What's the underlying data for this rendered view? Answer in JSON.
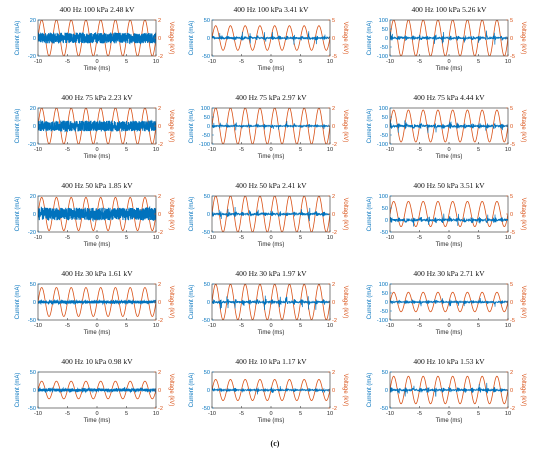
{
  "figure_caption": "(c)",
  "colors": {
    "current": "#0072BD",
    "voltage": "#D95319",
    "axes": "#262626"
  },
  "chart_data": [
    {
      "type": "line",
      "title": "400 Hz 100 kPa 2.48 kV",
      "xlabel": "Time (ms)",
      "ylabel": "Current (mA)",
      "y2label": "Voltage (kV)",
      "xlim": [
        -10,
        10
      ],
      "xticks": [
        "-10",
        "-5",
        "0",
        "5",
        "10"
      ],
      "ylim": [
        -20,
        20
      ],
      "yticks": [
        "-20",
        "0",
        "20"
      ],
      "y2lim": [
        -2,
        2
      ],
      "y2ticks": [
        "-2",
        "0",
        "2"
      ],
      "voltage_amplitude_kv": 2.48,
      "frequency_hz": 400,
      "current_peak_ma": 6,
      "current_style": "band",
      "series": [
        {
          "name": "Current (mA)"
        },
        {
          "name": "Voltage (kV)"
        }
      ]
    },
    {
      "type": "line",
      "title": "400 Hz 100 kPa 3.41 kV",
      "xlabel": "Time (ms)",
      "ylabel": "Current (mA)",
      "y2label": "Voltage (kV)",
      "xlim": [
        -10,
        10
      ],
      "xticks": [
        "-10",
        "-5",
        "0",
        "5",
        "10"
      ],
      "ylim": [
        -50,
        50
      ],
      "yticks": [
        "-50",
        "0",
        "50"
      ],
      "y2lim": [
        -5,
        5
      ],
      "y2ticks": [
        "-5",
        "0",
        "5"
      ],
      "voltage_amplitude_kv": 3.41,
      "frequency_hz": 400,
      "current_peak_ma": 18,
      "current_style": "bursts",
      "series": [
        {
          "name": "Current (mA)"
        },
        {
          "name": "Voltage (kV)"
        }
      ]
    },
    {
      "type": "line",
      "title": "400 Hz 100 kPa 5.26 kV",
      "xlabel": "Time (ms)",
      "ylabel": "Current (mA)",
      "y2label": "Voltage (kV)",
      "xlim": [
        -10,
        10
      ],
      "xticks": [
        "-10",
        "-5",
        "0",
        "5",
        "10"
      ],
      "ylim": [
        -100,
        100
      ],
      "yticks": [
        "-100",
        "-50",
        "0",
        "50",
        "100"
      ],
      "y2lim": [
        -5,
        5
      ],
      "y2ticks": [
        "-5",
        "0",
        "5"
      ],
      "voltage_amplitude_kv": 5.26,
      "frequency_hz": 400,
      "current_peak_ma": 40,
      "current_style": "bursts",
      "series": [
        {
          "name": "Current (mA)"
        },
        {
          "name": "Voltage (kV)"
        }
      ]
    },
    {
      "type": "line",
      "title": "400 Hz 75 kPa 2.23 kV",
      "xlabel": "Time (ms)",
      "ylabel": "Current (mA)",
      "y2label": "Voltage (kV)",
      "xlim": [
        -10,
        10
      ],
      "xticks": [
        "-10",
        "-5",
        "0",
        "5",
        "10"
      ],
      "ylim": [
        -20,
        20
      ],
      "yticks": [
        "-20",
        "0",
        "20"
      ],
      "y2lim": [
        -2,
        2
      ],
      "y2ticks": [
        "-2",
        "0",
        "2"
      ],
      "voltage_amplitude_kv": 2.23,
      "frequency_hz": 400,
      "current_peak_ma": 6,
      "current_style": "band",
      "series": [
        {
          "name": "Current (mA)"
        },
        {
          "name": "Voltage (kV)"
        }
      ]
    },
    {
      "type": "line",
      "title": "400 Hz 75 kPa 2.97 kV",
      "xlabel": "Time (ms)",
      "ylabel": "Current (mA)",
      "y2label": "Voltage (kV)",
      "xlim": [
        -10,
        10
      ],
      "xticks": [
        "-10",
        "-5",
        "0",
        "5",
        "10"
      ],
      "ylim": [
        -100,
        100
      ],
      "yticks": [
        "-100",
        "-50",
        "0",
        "50",
        "100"
      ],
      "y2lim": [
        -2,
        2
      ],
      "y2ticks": [
        "-2",
        "0",
        "2"
      ],
      "voltage_amplitude_kv": 2.97,
      "frequency_hz": 400,
      "current_peak_ma": 25,
      "current_style": "bursts",
      "series": [
        {
          "name": "Current (mA)"
        },
        {
          "name": "Voltage (kV)"
        }
      ]
    },
    {
      "type": "line",
      "title": "400 Hz 75 kPa 4.44 kV",
      "xlabel": "Time (ms)",
      "ylabel": "Current (mA)",
      "y2label": "Voltage (kV)",
      "xlim": [
        -10,
        10
      ],
      "xticks": [
        "-10",
        "-5",
        "0",
        "5",
        "10"
      ],
      "ylim": [
        -100,
        100
      ],
      "yticks": [
        "-100",
        "-50",
        "0",
        "50",
        "100"
      ],
      "y2lim": [
        -5,
        5
      ],
      "y2ticks": [
        "-5",
        "0",
        "5"
      ],
      "voltage_amplitude_kv": 4.44,
      "frequency_hz": 400,
      "current_peak_ma": 45,
      "current_style": "bursts",
      "series": [
        {
          "name": "Current (mA)"
        },
        {
          "name": "Voltage (kV)"
        }
      ]
    },
    {
      "type": "line",
      "title": "400 Hz 50 kPa 1.85 kV",
      "xlabel": "Time (ms)",
      "ylabel": "Current (mA)",
      "y2label": "Voltage (kV)",
      "xlim": [
        -10,
        10
      ],
      "xticks": [
        "-10",
        "-5",
        "0",
        "5",
        "10"
      ],
      "ylim": [
        -20,
        20
      ],
      "yticks": [
        "-20",
        "0",
        "20"
      ],
      "y2lim": [
        -2,
        2
      ],
      "y2ticks": [
        "-2",
        "0",
        "2"
      ],
      "voltage_amplitude_kv": 1.85,
      "frequency_hz": 400,
      "current_peak_ma": 7,
      "current_style": "band",
      "series": [
        {
          "name": "Current (mA)"
        },
        {
          "name": "Voltage (kV)"
        }
      ]
    },
    {
      "type": "line",
      "title": "400 Hz 50 kPa 2.41 kV",
      "xlabel": "Time (ms)",
      "ylabel": "Current (mA)",
      "y2label": "Voltage (kV)",
      "xlim": [
        -10,
        10
      ],
      "xticks": [
        "-10",
        "-5",
        "0",
        "5",
        "10"
      ],
      "ylim": [
        -50,
        50
      ],
      "yticks": [
        "-50",
        "0",
        "50"
      ],
      "y2lim": [
        -2,
        2
      ],
      "y2ticks": [
        "-2",
        "0",
        "2"
      ],
      "voltage_amplitude_kv": 2.41,
      "frequency_hz": 400,
      "current_peak_ma": 20,
      "current_style": "bursts",
      "series": [
        {
          "name": "Current (mA)"
        },
        {
          "name": "Voltage (kV)"
        }
      ]
    },
    {
      "type": "line",
      "title": "400 Hz 50 kPa 3.51 kV",
      "xlabel": "Time (ms)",
      "ylabel": "Current (mA)",
      "y2label": "Voltage (kV)",
      "xlim": [
        -10,
        10
      ],
      "xticks": [
        "-10",
        "-5",
        "0",
        "5",
        "10"
      ],
      "ylim": [
        -50,
        100
      ],
      "yticks": [
        "-50",
        "0",
        "50",
        "100"
      ],
      "y2lim": [
        -5,
        5
      ],
      "y2ticks": [
        "-5",
        "0",
        "5"
      ],
      "voltage_amplitude_kv": 3.51,
      "frequency_hz": 400,
      "current_peak_ma": 35,
      "current_style": "bursts",
      "series": [
        {
          "name": "Current (mA)"
        },
        {
          "name": "Voltage (kV)"
        }
      ]
    },
    {
      "type": "line",
      "title": "400 Hz 30 kPa 1.61 kV",
      "xlabel": "Time (ms)",
      "ylabel": "Current (mA)",
      "y2label": "Voltage (kV)",
      "xlim": [
        -10,
        10
      ],
      "xticks": [
        "-10",
        "-5",
        "0",
        "5",
        "10"
      ],
      "ylim": [
        -50,
        50
      ],
      "yticks": [
        "-50",
        "0",
        "50"
      ],
      "y2lim": [
        -2,
        2
      ],
      "y2ticks": [
        "-2",
        "0",
        "2"
      ],
      "voltage_amplitude_kv": 1.61,
      "frequency_hz": 400,
      "current_peak_ma": 4,
      "current_style": "band",
      "series": [
        {
          "name": "Current (mA)"
        },
        {
          "name": "Voltage (kV)"
        }
      ]
    },
    {
      "type": "line",
      "title": "400 Hz 30 kPa 1.97 kV",
      "xlabel": "Time (ms)",
      "ylabel": "Current (mA)",
      "y2label": "Voltage (kV)",
      "xlim": [
        -10,
        10
      ],
      "xticks": [
        "-10",
        "-5",
        "0",
        "5",
        "10"
      ],
      "ylim": [
        -50,
        50
      ],
      "yticks": [
        "-50",
        "0",
        "50"
      ],
      "y2lim": [
        -2,
        2
      ],
      "y2ticks": [
        "-2",
        "0",
        "2"
      ],
      "voltage_amplitude_kv": 1.97,
      "frequency_hz": 400,
      "current_peak_ma": 22,
      "current_style": "bursts",
      "series": [
        {
          "name": "Current (mA)"
        },
        {
          "name": "Voltage (kV)"
        }
      ]
    },
    {
      "type": "line",
      "title": "400 Hz 30 kPa 2.71 kV",
      "xlabel": "Time (ms)",
      "ylabel": "Current (mA)",
      "y2label": "Voltage (kV)",
      "xlim": [
        -10,
        10
      ],
      "xticks": [
        "-10",
        "-5",
        "0",
        "5",
        "10"
      ],
      "ylim": [
        -100,
        100
      ],
      "yticks": [
        "-100",
        "-50",
        "0",
        "50",
        "100"
      ],
      "y2lim": [
        -5,
        5
      ],
      "y2ticks": [
        "-5",
        "0",
        "5"
      ],
      "voltage_amplitude_kv": 2.71,
      "frequency_hz": 400,
      "current_peak_ma": 30,
      "current_style": "bursts",
      "series": [
        {
          "name": "Current (mA)"
        },
        {
          "name": "Voltage (kV)"
        }
      ]
    },
    {
      "type": "line",
      "title": "400 Hz 10 kPa 0.98 kV",
      "xlabel": "Time (ms)",
      "ylabel": "Current (mA)",
      "y2label": "Voltage (kV)",
      "xlim": [
        -10,
        10
      ],
      "xticks": [
        "-10",
        "-5",
        "0",
        "5",
        "10"
      ],
      "ylim": [
        -50,
        50
      ],
      "yticks": [
        "-50",
        "0",
        "50"
      ],
      "y2lim": [
        -2,
        2
      ],
      "y2ticks": [
        "-2",
        "0",
        "2"
      ],
      "voltage_amplitude_kv": 0.98,
      "frequency_hz": 400,
      "current_peak_ma": 4,
      "current_style": "band",
      "series": [
        {
          "name": "Current (mA)"
        },
        {
          "name": "Voltage (kV)"
        }
      ]
    },
    {
      "type": "line",
      "title": "400 Hz 10 kPa 1.17 kV",
      "xlabel": "Time (ms)",
      "ylabel": "Current (mA)",
      "y2label": "Voltage (kV)",
      "xlim": [
        -10,
        10
      ],
      "xticks": [
        "-10",
        "-5",
        "0",
        "5",
        "10"
      ],
      "ylim": [
        -50,
        50
      ],
      "yticks": [
        "-50",
        "0",
        "50"
      ],
      "y2lim": [
        -2,
        2
      ],
      "y2ticks": [
        "-2",
        "0",
        "2"
      ],
      "voltage_amplitude_kv": 1.17,
      "frequency_hz": 400,
      "current_peak_ma": 14,
      "current_style": "bursts",
      "series": [
        {
          "name": "Current (mA)"
        },
        {
          "name": "Voltage (kV)"
        }
      ]
    },
    {
      "type": "line",
      "title": "400 Hz 10 kPa 1.53 kV",
      "xlabel": "Time (ms)",
      "ylabel": "Current (mA)",
      "y2label": "Voltage (kV)",
      "xlim": [
        -10,
        10
      ],
      "xticks": [
        "-10",
        "-5",
        "0",
        "5",
        "10"
      ],
      "ylim": [
        -50,
        50
      ],
      "yticks": [
        "-50",
        "0",
        "50"
      ],
      "y2lim": [
        -2,
        2
      ],
      "y2ticks": [
        "-2",
        "0",
        "2"
      ],
      "voltage_amplitude_kv": 1.53,
      "frequency_hz": 400,
      "current_peak_ma": 20,
      "current_style": "bursts",
      "series": [
        {
          "name": "Current (mA)"
        },
        {
          "name": "Voltage (kV)"
        }
      ]
    }
  ]
}
